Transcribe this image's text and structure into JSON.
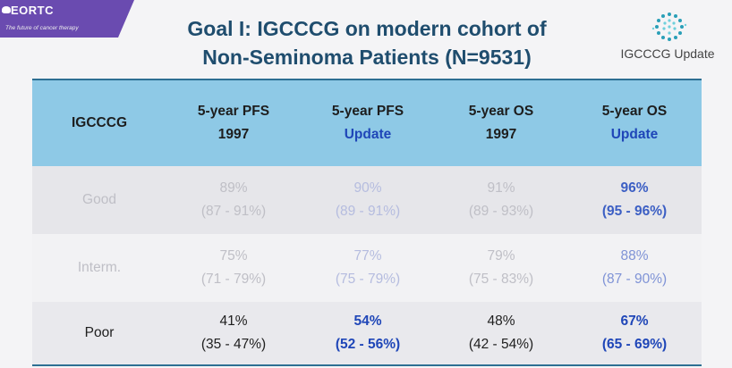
{
  "header": {
    "logo_name": "EORTC",
    "logo_tagline": "The future of cancer therapy",
    "title_line1": "Goal I: IGCCCG on modern cohort of",
    "title_line2": "Non-Seminoma Patients (N=9531)",
    "badge_label": "IGCCCG Update"
  },
  "table": {
    "headers": [
      {
        "line1": "IGCCCG",
        "line2": ""
      },
      {
        "line1": "5-year PFS",
        "line2": "1997"
      },
      {
        "line1": "5-year PFS",
        "line2": "Update"
      },
      {
        "line1": "5-year OS",
        "line2": "1997"
      },
      {
        "line1": "5-year OS",
        "line2": "Update"
      }
    ],
    "rows": [
      {
        "label": "Good",
        "cells": [
          {
            "value": "89%",
            "ci": "(87 - 91%)"
          },
          {
            "value": "90%",
            "ci": "(89 - 91%)"
          },
          {
            "value": "91%",
            "ci": "(89 - 93%)"
          },
          {
            "value": "96%",
            "ci": "(95 - 96%)"
          }
        ]
      },
      {
        "label": "Interm.",
        "cells": [
          {
            "value": "75%",
            "ci": "(71 - 79%)"
          },
          {
            "value": "77%",
            "ci": "(75 - 79%)"
          },
          {
            "value": "79%",
            "ci": "(75 - 83%)"
          },
          {
            "value": "88%",
            "ci": "(87 - 90%)"
          }
        ]
      },
      {
        "label": "Poor",
        "cells": [
          {
            "value": "41%",
            "ci": "(35 - 47%)"
          },
          {
            "value": "54%",
            "ci": "(52 - 56%)"
          },
          {
            "value": "48%",
            "ci": "(42 - 54%)"
          },
          {
            "value": "67%",
            "ci": "(65 - 69%)"
          }
        ]
      }
    ]
  },
  "colors": {
    "title": "#1f4d6e",
    "header_bg": "#8ec9e6",
    "update_blue": "#1f46b8",
    "logo_purple": "#6a4bb0"
  }
}
